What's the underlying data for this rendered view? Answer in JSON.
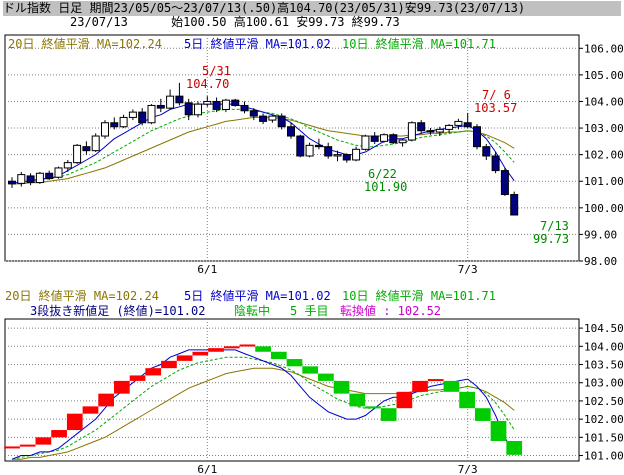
{
  "header": {
    "title": "ドル指数 日足 期間23/05/05～23/07/13(.50)高104.70(23/05/31)安99.73(23/07/13)",
    "info": "23/07/13      始100.50 高100.61 安99.73 終99.73"
  },
  "colors": {
    "up_candle": "#ffffff",
    "down_candle": "#000080",
    "ma5": "#0000cc",
    "ma10": "#00aa00",
    "ma20": "#8b7500",
    "kagi_up": "#ff0000",
    "kagi_down": "#00cc00",
    "annotation_red": "#cc0000",
    "annotation_green": "#008800",
    "grid": "#808080"
  },
  "top_panel": {
    "legend": [
      "20日 終値平滑 MA=102.24",
      "5日 終値平滑 MA=101.02",
      "10日 終値平滑 MA=101.71"
    ],
    "annotations": [
      {
        "label": "5/31",
        "value": "104.70"
      },
      {
        "label": "7/ 6",
        "value": "103.57"
      },
      {
        "label": "6/22",
        "value": "101.90"
      },
      {
        "label": "7/13",
        "value": "99.73"
      }
    ]
  },
  "bottom_panel": {
    "legend": [
      "20日 終値平滑 MA=102.24",
      "5日 終値平滑 MA=101.02",
      "10日 終値平滑 MA=101.71"
    ],
    "sub_legend": "3段抜き新値足 (終値)=101.02",
    "status": "陰転中",
    "count": "5 手目",
    "reversal": "転換値 : 102.52"
  },
  "chart_data": [
    {
      "type": "candlestick",
      "title": "ドル指数 日足",
      "x_ticks": [
        "6/1",
        "7/3"
      ],
      "y_ticks": [
        "98.00",
        "99.00",
        "100.00",
        "101.00",
        "102.00",
        "103.00",
        "104.00",
        "105.00",
        "106.00"
      ],
      "ylim": [
        98.0,
        106.5
      ],
      "grid": true,
      "candles": [
        {
          "o": 101.0,
          "h": 101.15,
          "l": 100.75,
          "c": 100.9
        },
        {
          "o": 100.92,
          "h": 101.35,
          "l": 100.8,
          "c": 101.25
        },
        {
          "o": 101.2,
          "h": 101.3,
          "l": 100.85,
          "c": 100.95
        },
        {
          "o": 100.95,
          "h": 101.35,
          "l": 100.9,
          "c": 101.3
        },
        {
          "o": 101.3,
          "h": 101.4,
          "l": 101.05,
          "c": 101.1
        },
        {
          "o": 101.15,
          "h": 101.55,
          "l": 101.1,
          "c": 101.5
        },
        {
          "o": 101.5,
          "h": 101.8,
          "l": 101.35,
          "c": 101.7
        },
        {
          "o": 101.7,
          "h": 102.4,
          "l": 101.65,
          "c": 102.35
        },
        {
          "o": 102.3,
          "h": 102.5,
          "l": 102.0,
          "c": 102.15
        },
        {
          "o": 102.15,
          "h": 102.8,
          "l": 102.1,
          "c": 102.7
        },
        {
          "o": 102.7,
          "h": 103.3,
          "l": 102.6,
          "c": 103.2
        },
        {
          "o": 103.2,
          "h": 103.4,
          "l": 102.95,
          "c": 103.05
        },
        {
          "o": 103.05,
          "h": 103.5,
          "l": 103.0,
          "c": 103.4
        },
        {
          "o": 103.4,
          "h": 103.7,
          "l": 103.3,
          "c": 103.6
        },
        {
          "o": 103.6,
          "h": 103.75,
          "l": 103.1,
          "c": 103.2
        },
        {
          "o": 103.2,
          "h": 103.9,
          "l": 103.15,
          "c": 103.85
        },
        {
          "o": 103.85,
          "h": 104.1,
          "l": 103.6,
          "c": 103.75
        },
        {
          "o": 103.75,
          "h": 104.45,
          "l": 103.7,
          "c": 104.2
        },
        {
          "o": 104.2,
          "h": 104.7,
          "l": 103.85,
          "c": 103.95
        },
        {
          "o": 103.95,
          "h": 104.1,
          "l": 103.3,
          "c": 103.5
        },
        {
          "o": 103.5,
          "h": 104.0,
          "l": 103.4,
          "c": 103.9
        },
        {
          "o": 103.9,
          "h": 104.2,
          "l": 103.8,
          "c": 104.0
        },
        {
          "o": 104.0,
          "h": 104.15,
          "l": 103.6,
          "c": 103.7
        },
        {
          "o": 103.7,
          "h": 104.1,
          "l": 103.6,
          "c": 104.05
        },
        {
          "o": 104.05,
          "h": 104.1,
          "l": 103.8,
          "c": 103.85
        },
        {
          "o": 103.85,
          "h": 104.0,
          "l": 103.55,
          "c": 103.65
        },
        {
          "o": 103.65,
          "h": 103.75,
          "l": 103.3,
          "c": 103.45
        },
        {
          "o": 103.45,
          "h": 103.55,
          "l": 103.15,
          "c": 103.25
        },
        {
          "o": 103.3,
          "h": 103.5,
          "l": 103.2,
          "c": 103.45
        },
        {
          "o": 103.45,
          "h": 103.55,
          "l": 102.95,
          "c": 103.05
        },
        {
          "o": 103.05,
          "h": 103.2,
          "l": 102.6,
          "c": 102.7
        },
        {
          "o": 102.7,
          "h": 102.75,
          "l": 101.9,
          "c": 101.95
        },
        {
          "o": 101.95,
          "h": 102.45,
          "l": 101.9,
          "c": 102.35
        },
        {
          "o": 102.35,
          "h": 102.6,
          "l": 102.2,
          "c": 102.3
        },
        {
          "o": 102.3,
          "h": 102.45,
          "l": 101.85,
          "c": 101.95
        },
        {
          "o": 101.95,
          "h": 102.15,
          "l": 101.75,
          "c": 102.0
        },
        {
          "o": 102.0,
          "h": 102.05,
          "l": 101.7,
          "c": 101.8
        },
        {
          "o": 101.8,
          "h": 102.3,
          "l": 101.75,
          "c": 102.2
        },
        {
          "o": 102.2,
          "h": 102.75,
          "l": 102.15,
          "c": 102.7
        },
        {
          "o": 102.7,
          "h": 102.85,
          "l": 102.4,
          "c": 102.5
        },
        {
          "o": 102.5,
          "h": 102.8,
          "l": 102.45,
          "c": 102.75
        },
        {
          "o": 102.75,
          "h": 102.8,
          "l": 102.4,
          "c": 102.45
        },
        {
          "o": 102.45,
          "h": 102.6,
          "l": 102.3,
          "c": 102.55
        },
        {
          "o": 102.55,
          "h": 103.25,
          "l": 102.5,
          "c": 103.2
        },
        {
          "o": 103.2,
          "h": 103.3,
          "l": 102.8,
          "c": 102.9
        },
        {
          "o": 102.9,
          "h": 103.0,
          "l": 102.75,
          "c": 102.85
        },
        {
          "o": 102.85,
          "h": 103.05,
          "l": 102.7,
          "c": 102.95
        },
        {
          "o": 102.95,
          "h": 103.15,
          "l": 102.8,
          "c": 103.1
        },
        {
          "o": 103.1,
          "h": 103.35,
          "l": 102.95,
          "c": 103.25
        },
        {
          "o": 103.2,
          "h": 103.57,
          "l": 103.0,
          "c": 103.05
        },
        {
          "o": 103.05,
          "h": 103.15,
          "l": 102.2,
          "c": 102.3
        },
        {
          "o": 102.3,
          "h": 102.4,
          "l": 101.8,
          "c": 101.95
        },
        {
          "o": 101.95,
          "h": 102.1,
          "l": 101.3,
          "c": 101.4
        },
        {
          "o": 101.4,
          "h": 101.5,
          "l": 100.45,
          "c": 100.5
        },
        {
          "o": 100.5,
          "h": 100.61,
          "l": 99.73,
          "c": 99.73
        }
      ],
      "series": [
        {
          "name": "5日 終値平滑",
          "values": [
            100.9,
            101.0,
            101.0,
            101.1,
            101.1,
            101.2,
            101.4,
            101.6,
            101.8,
            102.0,
            102.3,
            102.6,
            102.8,
            103.0,
            103.2,
            103.4,
            103.5,
            103.7,
            103.8,
            103.9,
            103.9,
            103.9,
            103.9,
            103.9,
            103.9,
            103.8,
            103.7,
            103.6,
            103.5,
            103.4,
            103.2,
            102.9,
            102.6,
            102.4,
            102.2,
            102.1,
            102.0,
            102.0,
            102.1,
            102.3,
            102.5,
            102.6,
            102.6,
            102.7,
            102.8,
            102.9,
            102.95,
            103.0,
            103.05,
            103.1,
            102.9,
            102.6,
            102.1,
            101.5,
            101.02
          ]
        },
        {
          "name": "10日 終値平滑",
          "values": [
            100.9,
            100.95,
            101.0,
            101.05,
            101.1,
            101.15,
            101.25,
            101.4,
            101.55,
            101.7,
            101.9,
            102.1,
            102.3,
            102.5,
            102.7,
            102.9,
            103.05,
            103.2,
            103.35,
            103.45,
            103.55,
            103.6,
            103.65,
            103.7,
            103.7,
            103.7,
            103.65,
            103.6,
            103.55,
            103.45,
            103.35,
            103.2,
            103.0,
            102.85,
            102.7,
            102.55,
            102.45,
            102.35,
            102.3,
            102.3,
            102.35,
            102.4,
            102.45,
            102.55,
            102.65,
            102.7,
            102.75,
            102.8,
            102.85,
            102.9,
            102.85,
            102.7,
            102.45,
            102.1,
            101.71
          ]
        },
        {
          "name": "20日 終値平滑",
          "values": [
            100.9,
            100.9,
            100.95,
            100.95,
            101.0,
            101.05,
            101.1,
            101.2,
            101.3,
            101.4,
            101.5,
            101.65,
            101.8,
            101.95,
            102.1,
            102.25,
            102.4,
            102.55,
            102.7,
            102.85,
            102.95,
            103.05,
            103.15,
            103.25,
            103.3,
            103.35,
            103.4,
            103.4,
            103.4,
            103.35,
            103.3,
            103.2,
            103.1,
            103.0,
            102.9,
            102.85,
            102.8,
            102.75,
            102.7,
            102.7,
            102.7,
            102.7,
            102.7,
            102.75,
            102.75,
            102.8,
            102.8,
            102.85,
            102.85,
            102.9,
            102.85,
            102.75,
            102.6,
            102.45,
            102.24
          ]
        }
      ]
    },
    {
      "type": "bar",
      "title": "3段抜き新値足 (終値)",
      "x_ticks": [
        "6/1",
        "7/3"
      ],
      "y_ticks": [
        "101.00",
        "101.50",
        "102.00",
        "102.50",
        "103.00",
        "103.50",
        "104.00",
        "104.50"
      ],
      "ylim": [
        100.85,
        104.75
      ],
      "grid": true,
      "bricks": [
        {
          "dir": "up",
          "from": 101.2,
          "to": 101.25
        },
        {
          "dir": "up",
          "from": 101.25,
          "to": 101.3
        },
        {
          "dir": "up",
          "from": 101.3,
          "to": 101.5
        },
        {
          "dir": "up",
          "from": 101.5,
          "to": 101.7
        },
        {
          "dir": "up",
          "from": 101.7,
          "to": 102.15
        },
        {
          "dir": "up",
          "from": 102.15,
          "to": 102.35
        },
        {
          "dir": "up",
          "from": 102.35,
          "to": 102.7
        },
        {
          "dir": "up",
          "from": 102.7,
          "to": 103.05
        },
        {
          "dir": "up",
          "from": 103.05,
          "to": 103.2
        },
        {
          "dir": "up",
          "from": 103.2,
          "to": 103.4
        },
        {
          "dir": "up",
          "from": 103.4,
          "to": 103.6
        },
        {
          "dir": "up",
          "from": 103.6,
          "to": 103.75
        },
        {
          "dir": "up",
          "from": 103.75,
          "to": 103.85
        },
        {
          "dir": "up",
          "from": 103.85,
          "to": 103.95
        },
        {
          "dir": "up",
          "from": 103.95,
          "to": 104.0
        },
        {
          "dir": "up",
          "from": 104.0,
          "to": 104.05
        },
        {
          "dir": "down",
          "from": 104.0,
          "to": 103.85
        },
        {
          "dir": "down",
          "from": 103.85,
          "to": 103.65
        },
        {
          "dir": "down",
          "from": 103.65,
          "to": 103.45
        },
        {
          "dir": "down",
          "from": 103.45,
          "to": 103.25
        },
        {
          "dir": "down",
          "from": 103.25,
          "to": 103.05
        },
        {
          "dir": "down",
          "from": 103.05,
          "to": 102.7
        },
        {
          "dir": "down",
          "from": 102.7,
          "to": 102.35
        },
        {
          "dir": "down",
          "from": 102.35,
          "to": 102.3
        },
        {
          "dir": "down",
          "from": 102.3,
          "to": 101.95
        },
        {
          "dir": "up",
          "from": 102.3,
          "to": 102.75
        },
        {
          "dir": "up",
          "from": 102.75,
          "to": 103.05
        },
        {
          "dir": "up",
          "from": 103.05,
          "to": 103.1
        },
        {
          "dir": "down",
          "from": 103.05,
          "to": 102.75
        },
        {
          "dir": "down",
          "from": 102.75,
          "to": 102.3
        },
        {
          "dir": "down",
          "from": 102.3,
          "to": 101.95
        },
        {
          "dir": "down",
          "from": 101.95,
          "to": 101.4
        },
        {
          "dir": "down",
          "from": 101.4,
          "to": 101.02
        }
      ]
    }
  ]
}
